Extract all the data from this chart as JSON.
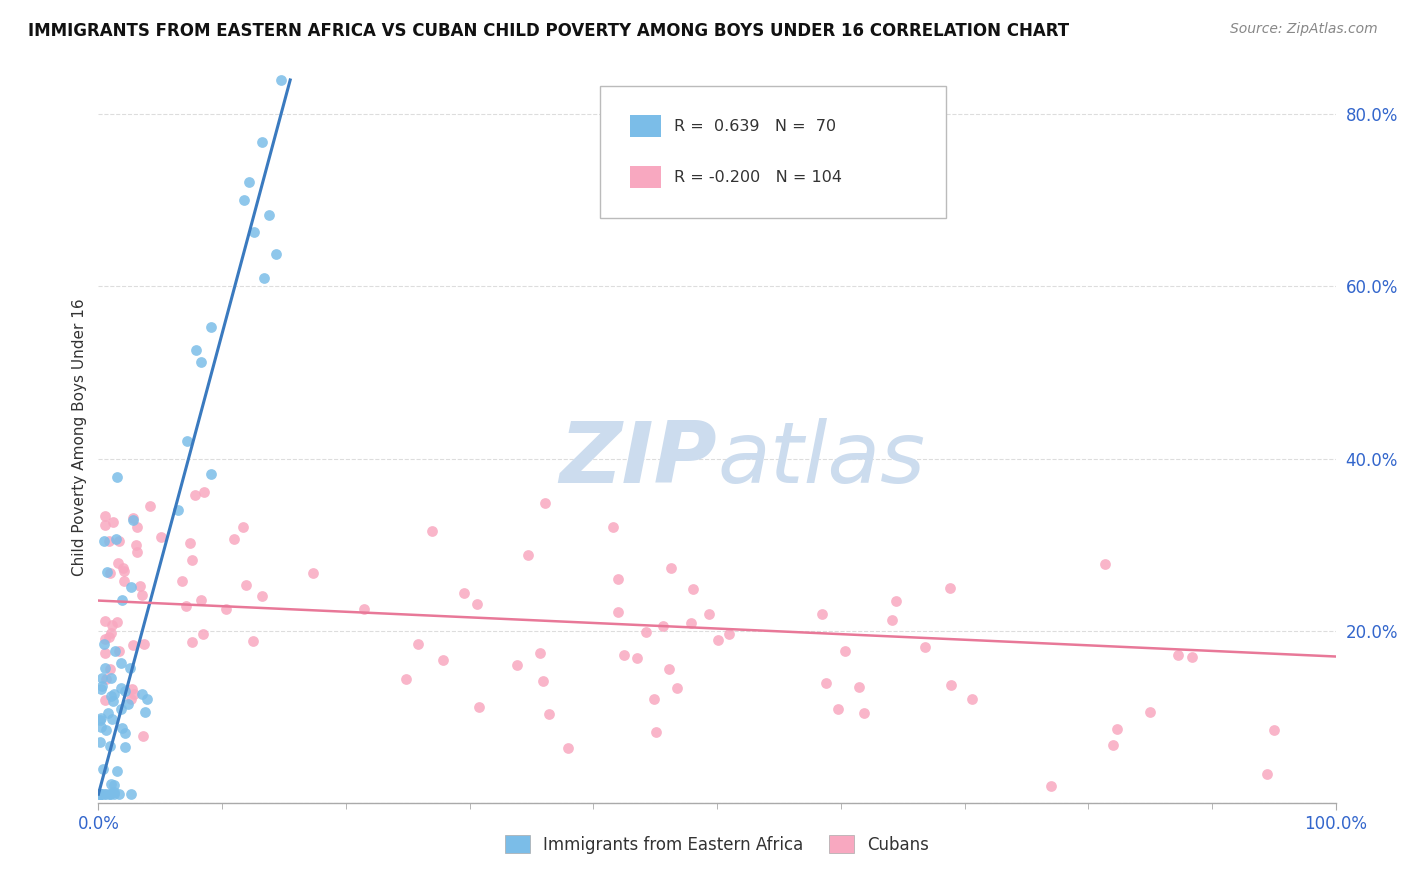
{
  "title": "IMMIGRANTS FROM EASTERN AFRICA VS CUBAN CHILD POVERTY AMONG BOYS UNDER 16 CORRELATION CHART",
  "source": "Source: ZipAtlas.com",
  "ylabel": "Child Poverty Among Boys Under 16",
  "legend_labels": [
    "Immigrants from Eastern Africa",
    "Cubans"
  ],
  "blue_R": 0.639,
  "blue_N": 70,
  "pink_R": -0.2,
  "pink_N": 104,
  "blue_color": "#7bbde8",
  "pink_color": "#f8a8c0",
  "blue_trend_color": "#3a7abf",
  "pink_trend_color": "#e87898",
  "watermark_color": "#ccdcee",
  "xlim": [
    0.0,
    1.0
  ],
  "ylim": [
    0.0,
    0.85
  ],
  "ytick_positions": [
    0.0,
    0.2,
    0.4,
    0.6,
    0.8
  ],
  "ytick_labels": [
    "",
    "20.0%",
    "40.0%",
    "60.0%",
    "80.0%"
  ],
  "xtick_labels": [
    "0.0%",
    "100.0%"
  ],
  "blue_trend_x0": 0.0,
  "blue_trend_y0": 0.01,
  "blue_trend_x1": 0.155,
  "blue_trend_y1": 0.84,
  "pink_trend_x0": 0.0,
  "pink_trend_y0": 0.235,
  "pink_trend_x1": 1.0,
  "pink_trend_y1": 0.17
}
